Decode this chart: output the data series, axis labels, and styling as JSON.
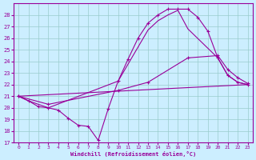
{
  "xlabel": "Windchill (Refroidissement éolien,°C)",
  "bg_color": "#cceeff",
  "line_color": "#990099",
  "grid_color": "#99cccc",
  "xlim": [
    -0.5,
    23.5
  ],
  "ylim": [
    17,
    29
  ],
  "yticks": [
    17,
    18,
    19,
    20,
    21,
    22,
    23,
    24,
    25,
    26,
    27,
    28
  ],
  "xticks": [
    0,
    1,
    2,
    3,
    4,
    5,
    6,
    7,
    8,
    9,
    10,
    11,
    12,
    13,
    14,
    15,
    16,
    17,
    18,
    19,
    20,
    21,
    22,
    23
  ],
  "lines": [
    {
      "x": [
        0,
        1,
        2,
        3,
        4,
        5,
        6,
        7,
        8,
        9,
        10,
        11,
        12,
        13,
        14,
        15,
        16,
        17,
        18,
        19,
        20,
        21,
        22,
        23
      ],
      "y": [
        21.0,
        20.6,
        20.1,
        20.0,
        19.8,
        19.1,
        18.5,
        18.4,
        17.2,
        19.9,
        22.3,
        24.2,
        26.0,
        27.3,
        28.0,
        28.5,
        28.5,
        28.5,
        27.8,
        26.6,
        24.3,
        22.8,
        22.2,
        22.0
      ],
      "marker": true
    },
    {
      "x": [
        0,
        1,
        3,
        10,
        13,
        14,
        15,
        16,
        17,
        20,
        21,
        22,
        23
      ],
      "y": [
        21.0,
        20.6,
        20.0,
        22.3,
        26.7,
        27.5,
        28.0,
        28.4,
        26.8,
        24.3,
        22.8,
        22.2,
        22.0
      ],
      "marker": false
    },
    {
      "x": [
        0,
        3,
        10,
        13,
        17,
        20,
        21,
        22,
        23
      ],
      "y": [
        21.0,
        20.3,
        21.5,
        22.2,
        24.3,
        24.5,
        23.3,
        22.6,
        22.1
      ],
      "marker": true
    },
    {
      "x": [
        0,
        23
      ],
      "y": [
        21.0,
        22.0
      ],
      "marker": false
    }
  ]
}
